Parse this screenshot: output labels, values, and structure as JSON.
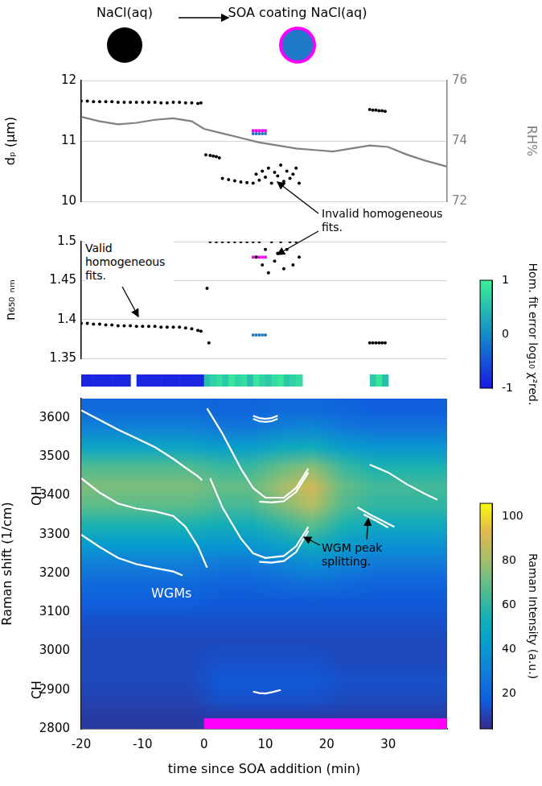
{
  "header": {
    "before": "NaCl(aq)",
    "after": "SOA coating NaCl(aq)"
  },
  "chart_data": [
    {
      "type": "scatter",
      "y_label": "dₚ (μm)",
      "y2_label": "RH%",
      "xlim": [
        -20,
        39.6
      ],
      "ylim": [
        10,
        12
      ],
      "yticks": [
        10,
        11,
        12
      ],
      "y2lim": [
        72,
        76
      ],
      "y2ticks": [
        72,
        74,
        76
      ],
      "grid": true,
      "tick_labels": "y",
      "series": [
        {
          "color": "#000000",
          "marker": "dot",
          "x": [
            -20,
            -19,
            -18,
            -17,
            -16,
            -15,
            -14,
            -13,
            -12,
            -11,
            -10,
            -9,
            -8,
            -7,
            -6,
            -5,
            -4,
            -3,
            -2,
            -1,
            -0.5,
            0.3,
            1,
            1.5,
            2,
            2.5,
            3,
            4,
            5,
            6,
            7,
            8,
            8.5,
            9,
            9.5,
            10,
            10.5,
            11,
            11.5,
            12,
            12.5,
            13,
            13.5,
            14,
            14.5,
            15,
            15.5,
            27,
            27.5,
            28,
            28.5,
            29,
            29.5
          ],
          "values": [
            11.66,
            11.66,
            11.65,
            11.65,
            11.65,
            11.65,
            11.64,
            11.64,
            11.64,
            11.64,
            11.64,
            11.64,
            11.64,
            11.63,
            11.63,
            11.64,
            11.64,
            11.63,
            11.63,
            11.62,
            11.63,
            10.77,
            10.76,
            10.75,
            10.74,
            10.72,
            10.38,
            10.36,
            10.34,
            10.32,
            10.31,
            10.3,
            10.45,
            10.35,
            10.5,
            10.4,
            10.55,
            10.3,
            10.48,
            10.42,
            10.6,
            10.33,
            10.5,
            10.38,
            10.45,
            10.55,
            10.3,
            11.52,
            11.51,
            11.51,
            11.5,
            11.5,
            11.49
          ]
        },
        {
          "color": "#808080",
          "type": "line",
          "axis": "y2",
          "x": [
            -20,
            -17,
            -14,
            -11,
            -8,
            -5,
            -2,
            0,
            3,
            6,
            9,
            12,
            15,
            18,
            21,
            24,
            27,
            30,
            33,
            36,
            39.6
          ],
          "values": [
            74.8,
            74.65,
            74.55,
            74.6,
            74.7,
            74.75,
            74.65,
            74.4,
            74.25,
            74.1,
            73.95,
            73.85,
            73.75,
            73.7,
            73.65,
            73.75,
            73.85,
            73.8,
            73.55,
            73.35,
            73.15
          ]
        },
        {
          "color": "#ff00ff",
          "marker": "square",
          "x": [
            8,
            8.5,
            9,
            9.5,
            10
          ],
          "values": [
            11.17,
            11.17,
            11.17,
            11.17,
            11.17
          ]
        },
        {
          "color": "#1f78c8",
          "marker": "dot",
          "x": [
            8,
            8.5,
            9,
            9.5,
            10
          ],
          "values": [
            11.12,
            11.12,
            11.12,
            11.12,
            11.12
          ]
        }
      ],
      "annotations": [
        "Invalid homogeneous fits."
      ]
    },
    {
      "type": "scatter",
      "y_label": "n₆₅₀ ₙₘ",
      "xlim": [
        -20,
        39.6
      ],
      "ylim": [
        1.35,
        1.5
      ],
      "yticks": [
        1.35,
        1.4,
        1.45,
        1.5
      ],
      "grid": true,
      "tick_labels": "y",
      "series": [
        {
          "color": "#000000",
          "marker": "dot",
          "x": [
            -20,
            -19,
            -18,
            -17,
            -16,
            -15,
            -14,
            -13,
            -12,
            -11,
            -10,
            -9,
            -8,
            -7,
            -6,
            -5,
            -4,
            -3,
            -2,
            -1,
            -0.5,
            0.5,
            0.8,
            1,
            2,
            3,
            4,
            5,
            6,
            7,
            8,
            8.5,
            9,
            9.5,
            10,
            10.5,
            11,
            11.5,
            12,
            12.5,
            13,
            13.5,
            14,
            14.5,
            15,
            15.5,
            27,
            27.5,
            28,
            28.5,
            29,
            29.5
          ],
          "values": [
            1.395,
            1.395,
            1.394,
            1.394,
            1.393,
            1.393,
            1.392,
            1.392,
            1.392,
            1.391,
            1.391,
            1.391,
            1.391,
            1.39,
            1.39,
            1.39,
            1.39,
            1.389,
            1.388,
            1.386,
            1.385,
            1.44,
            1.37,
            1.5,
            1.5,
            1.5,
            1.5,
            1.5,
            1.5,
            1.5,
            1.5,
            1.48,
            1.5,
            1.47,
            1.49,
            1.46,
            1.5,
            1.475,
            1.485,
            1.5,
            1.465,
            1.49,
            1.5,
            1.47,
            1.5,
            1.48,
            1.37,
            1.37,
            1.37,
            1.37,
            1.37,
            1.37
          ]
        },
        {
          "color": "#ff00ff",
          "marker": "square",
          "x": [
            8,
            8.5,
            9,
            9.5,
            10
          ],
          "values": [
            1.48,
            1.48,
            1.48,
            1.48,
            1.48
          ]
        },
        {
          "color": "#1f78c8",
          "marker": "dot",
          "x": [
            8,
            8.5,
            9,
            9.5,
            10
          ],
          "values": [
            1.38,
            1.38,
            1.38,
            1.38,
            1.38
          ]
        }
      ],
      "annotations": [
        "Valid homogeneous fits."
      ]
    },
    {
      "type": "colorstrip",
      "x_bins": [
        -20,
        -19,
        -18,
        -17,
        -16,
        -15,
        -14,
        -13,
        -12,
        -11,
        -10,
        -9,
        -8,
        -7,
        -6,
        -5,
        -4,
        -3,
        -2,
        -1,
        0,
        1,
        2,
        3,
        4,
        5,
        6,
        7,
        8,
        9,
        10,
        11,
        12,
        13,
        14,
        15,
        16,
        17,
        18,
        19,
        20,
        21,
        22,
        23,
        24,
        25,
        26,
        27,
        28,
        29,
        30
      ],
      "values": [
        -0.9,
        -0.9,
        -0.9,
        -0.9,
        -0.9,
        -0.9,
        -0.9,
        -0.9,
        null,
        -0.9,
        -0.9,
        -0.9,
        -0.9,
        -0.9,
        -0.9,
        -0.9,
        -0.9,
        -0.9,
        -0.9,
        -0.9,
        0.5,
        0.7,
        0.8,
        0.6,
        0.9,
        0.7,
        0.8,
        0.5,
        0.9,
        0.7,
        0.6,
        0.8,
        0.9,
        0.6,
        0.7,
        0.8,
        null,
        null,
        null,
        null,
        null,
        null,
        null,
        null,
        null,
        null,
        null,
        0.6,
        0.9,
        0.5
      ],
      "colorbar": {
        "label": "Hom. fit error log₁₀ χ²red.",
        "range": [
          -1,
          1
        ],
        "ticks": [
          -1,
          0,
          1
        ]
      }
    },
    {
      "type": "heatmap",
      "x_label": "time since SOA addition (min)",
      "y_label": "Raman shift (1/cm)",
      "xlim": [
        -20,
        39.6
      ],
      "xticks": [
        -20,
        -10,
        0,
        10,
        20,
        30
      ],
      "ylim": [
        2800,
        3650
      ],
      "yticks": [
        2800,
        2900,
        3000,
        3100,
        3200,
        3300,
        3400,
        3500,
        3600
      ],
      "x_bins": [
        -20,
        -15,
        -10,
        -5,
        0,
        5,
        10,
        15,
        20,
        25,
        30,
        35,
        40
      ],
      "y_bins": [
        2800,
        2850,
        2900,
        2950,
        3000,
        3050,
        3100,
        3150,
        3200,
        3250,
        3300,
        3350,
        3400,
        3450,
        3500,
        3550,
        3600,
        3650
      ],
      "cells": [
        [
          8,
          8,
          8,
          8,
          8,
          8,
          8,
          8,
          8,
          8,
          8,
          8
        ],
        [
          10,
          10,
          10,
          10,
          14,
          14,
          14,
          14,
          12,
          12,
          12,
          12
        ],
        [
          12,
          12,
          12,
          12,
          16,
          16,
          16,
          16,
          14,
          14,
          14,
          14
        ],
        [
          12,
          12,
          12,
          12,
          14,
          14,
          14,
          14,
          12,
          12,
          12,
          12
        ],
        [
          12,
          12,
          12,
          12,
          12,
          12,
          12,
          12,
          12,
          12,
          12,
          12
        ],
        [
          14,
          14,
          14,
          14,
          14,
          14,
          14,
          14,
          14,
          14,
          14,
          14
        ],
        [
          18,
          18,
          18,
          18,
          16,
          16,
          16,
          16,
          16,
          16,
          16,
          16
        ],
        [
          22,
          22,
          22,
          22,
          20,
          20,
          22,
          24,
          22,
          20,
          20,
          20
        ],
        [
          30,
          30,
          30,
          30,
          28,
          28,
          32,
          36,
          32,
          28,
          28,
          28
        ],
        [
          42,
          42,
          42,
          42,
          40,
          40,
          46,
          52,
          44,
          38,
          38,
          38
        ],
        [
          56,
          56,
          56,
          56,
          52,
          52,
          60,
          68,
          56,
          50,
          50,
          50
        ],
        [
          68,
          68,
          68,
          68,
          64,
          64,
          74,
          84,
          66,
          60,
          60,
          60
        ],
        [
          74,
          74,
          74,
          74,
          70,
          70,
          80,
          90,
          70,
          64,
          64,
          64
        ],
        [
          66,
          66,
          66,
          66,
          62,
          62,
          70,
          76,
          62,
          56,
          56,
          56
        ],
        [
          48,
          48,
          48,
          48,
          44,
          44,
          50,
          52,
          44,
          40,
          40,
          40
        ],
        [
          32,
          32,
          32,
          32,
          28,
          28,
          32,
          34,
          28,
          26,
          26,
          26
        ],
        [
          22,
          22,
          22,
          22,
          20,
          20,
          22,
          22,
          20,
          18,
          18,
          18
        ]
      ],
      "colorbar": {
        "label": "Raman Intensity (a.u.)",
        "range": [
          4,
          106
        ],
        "ticks": [
          20,
          40,
          60,
          80,
          100
        ]
      },
      "band_labels": [
        {
          "text": "OH",
          "value": 3400
        },
        {
          "text": "CH",
          "value": 2900
        }
      ],
      "soa_interval": {
        "color": "#ff00ff",
        "x": [
          0,
          39.6
        ]
      },
      "series": [
        {
          "type": "line",
          "color": "#ffffff",
          "x": [
            -20,
            -17,
            -14,
            -11,
            -8,
            -5,
            -3,
            -1,
            -0.3
          ],
          "values": [
            3620,
            3595,
            3570,
            3548,
            3525,
            3495,
            3472,
            3450,
            3440
          ]
        },
        {
          "type": "line",
          "color": "#ffffff",
          "x": [
            -20,
            -17,
            -14,
            -11,
            -8,
            -5,
            -3,
            -1,
            0.5
          ],
          "values": [
            3445,
            3408,
            3380,
            3367,
            3360,
            3348,
            3320,
            3270,
            3215
          ]
        },
        {
          "type": "line",
          "color": "#ffffff",
          "x": [
            -20,
            -17,
            -14,
            -11,
            -8,
            -5,
            -3.5
          ],
          "values": [
            3300,
            3268,
            3240,
            3224,
            3214,
            3205,
            3195
          ]
        },
        {
          "type": "line",
          "color": "#ffffff",
          "x": [
            0.5,
            3,
            6,
            8,
            10,
            13,
            15,
            17
          ],
          "values": [
            3625,
            3560,
            3470,
            3420,
            3395,
            3395,
            3420,
            3470
          ]
        },
        {
          "type": "line",
          "color": "#ffffff",
          "x": [
            9,
            11,
            13,
            15,
            17
          ],
          "values": [
            3385,
            3383,
            3386,
            3410,
            3460
          ]
        },
        {
          "type": "line",
          "color": "#ffffff",
          "x": [
            1,
            3,
            6,
            8,
            10,
            13,
            15,
            17
          ],
          "values": [
            3445,
            3370,
            3290,
            3252,
            3240,
            3245,
            3270,
            3320
          ]
        },
        {
          "type": "line",
          "color": "#ffffff",
          "x": [
            9,
            11,
            13,
            15,
            17
          ],
          "values": [
            3230,
            3228,
            3232,
            3255,
            3310
          ]
        },
        {
          "type": "line",
          "color": "#ffffff",
          "x": [
            8,
            9,
            10,
            11,
            12
          ],
          "values": [
            3606,
            3600,
            3598,
            3600,
            3606
          ]
        },
        {
          "type": "line",
          "color": "#ffffff",
          "x": [
            8,
            9,
            10,
            11,
            12
          ],
          "values": [
            3598,
            3592,
            3590,
            3592,
            3598
          ]
        },
        {
          "type": "line",
          "color": "#ffffff",
          "x": [
            8,
            9,
            10,
            11,
            12.5
          ],
          "values": [
            2896,
            2892,
            2891,
            2894,
            2900
          ]
        },
        {
          "type": "line",
          "color": "#ffffff",
          "x": [
            27,
            30,
            33,
            36,
            38
          ],
          "values": [
            3480,
            3460,
            3430,
            3405,
            3390
          ]
        },
        {
          "type": "line",
          "color": "#ffffff",
          "x": [
            25,
            27,
            29,
            31
          ],
          "values": [
            3370,
            3352,
            3336,
            3320
          ]
        },
        {
          "type": "line",
          "color": "#ffffff",
          "x": [
            26,
            28,
            30
          ],
          "values": [
            3352,
            3336,
            3318
          ]
        }
      ],
      "annotations": [
        "WGMs",
        "WGM peak splitting."
      ]
    }
  ]
}
